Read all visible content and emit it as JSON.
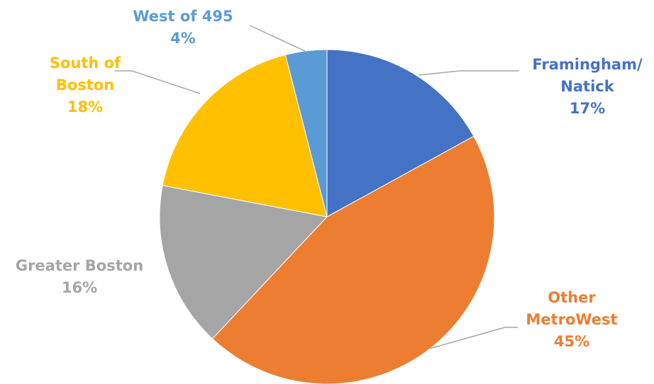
{
  "chart_data": {
    "type": "pie",
    "title": "",
    "start_angle_deg": 0,
    "direction": "clockwise",
    "slices": [
      {
        "label_lines": [
          "Framingham/",
          "Natick"
        ],
        "value": 17,
        "value_label": "17%",
        "color": "#4472c4"
      },
      {
        "label_lines": [
          "Other",
          "MetroWest"
        ],
        "value": 45,
        "value_label": "45%",
        "color": "#ed7d31"
      },
      {
        "label_lines": [
          "Greater Boston"
        ],
        "value": 16,
        "value_label": "16%",
        "color": "#a5a5a5"
      },
      {
        "label_lines": [
          "South of",
          "Boston"
        ],
        "value": 18,
        "value_label": "18%",
        "color": "#ffc000"
      },
      {
        "label_lines": [
          "West of 495"
        ],
        "value": 4,
        "value_label": "4%",
        "color": "#5b9bd5"
      }
    ]
  }
}
